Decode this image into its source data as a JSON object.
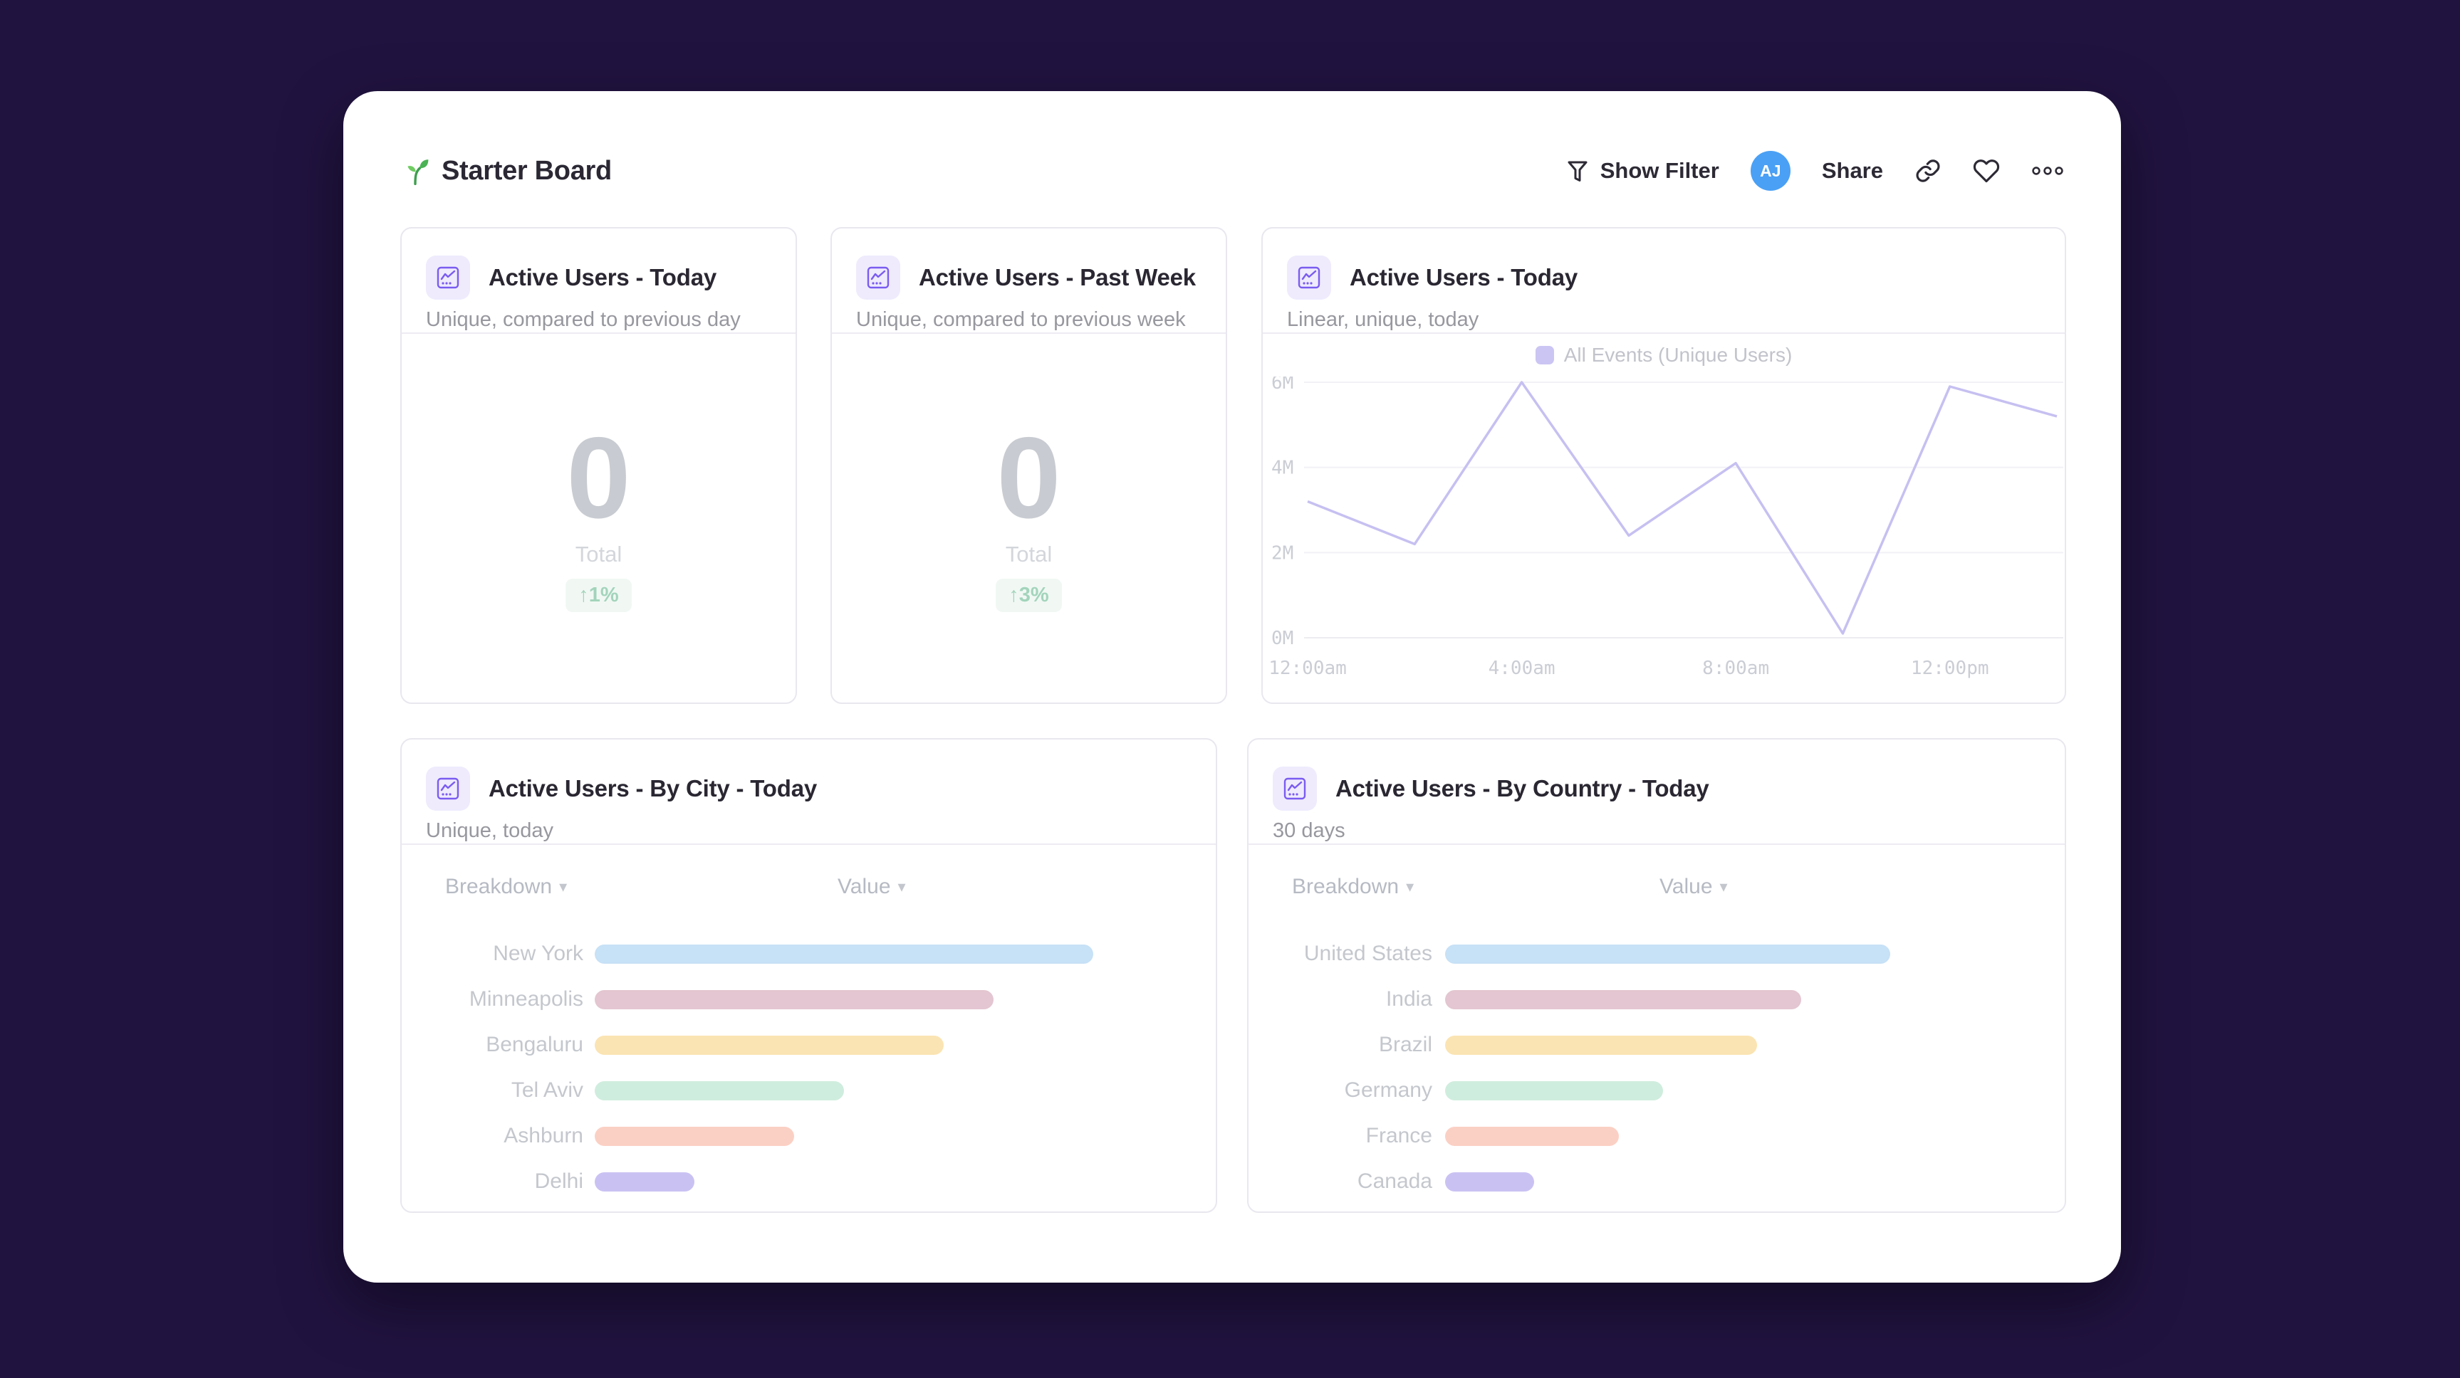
{
  "page": {
    "background": "#211340",
    "panel_background": "#ffffff"
  },
  "header": {
    "title": "Starter Board",
    "show_filter_label": "Show Filter",
    "avatar_initials": "AJ",
    "share_label": "Share"
  },
  "glyphs": {
    "caret": "▾"
  },
  "cards": {
    "today": {
      "title": "Active Users - Today",
      "subtitle": "Unique, compared to previous day",
      "value": "0",
      "value_label": "Total",
      "delta": "↑1%"
    },
    "past_week": {
      "title": "Active Users - Past Week",
      "subtitle": "Unique, compared to previous week",
      "value": "0",
      "value_label": "Total",
      "delta": "↑3%"
    },
    "today_chart": {
      "title": "Active Users - Today",
      "subtitle": "Linear, unique, today",
      "legend": "All Events (Unique Users)"
    },
    "by_city": {
      "title": "Active Users - By City - Today",
      "subtitle": "Unique, today",
      "col_breakdown": "Breakdown",
      "col_value": "Value"
    },
    "by_country": {
      "title": "Active Users - By Country - Today",
      "subtitle": "30 days",
      "col_breakdown": "Breakdown",
      "col_value": "Value"
    }
  },
  "chart_data": [
    {
      "type": "line",
      "title": "Active Users - Today",
      "x": [
        "12:00am",
        "2:00am",
        "4:00am",
        "6:00am",
        "8:00am",
        "10:00am",
        "12:00pm",
        "2:00pm"
      ],
      "x_tick_labels": [
        "12:00am",
        "4:00am",
        "8:00am",
        "12:00pm"
      ],
      "series": [
        {
          "name": "All Events (Unique Users)",
          "color": "#c6c0f1",
          "values_millions": [
            3.2,
            2.2,
            6.0,
            2.4,
            4.1,
            0.1,
            5.9,
            5.2
          ]
        }
      ],
      "ylim": [
        0,
        6
      ],
      "y_ticks": [
        "0M",
        "2M",
        "4M",
        "6M"
      ],
      "unit": "M",
      "grid": "horizontal",
      "legend_position": "top-center"
    },
    {
      "type": "bar",
      "orientation": "horizontal",
      "title": "Active Users - By City - Today",
      "categories": [
        "New York",
        "Minneapolis",
        "Bengaluru",
        "Tel Aviv",
        "Ashburn",
        "Delhi"
      ],
      "values_pct": [
        100,
        80,
        70,
        50,
        40,
        20
      ],
      "colors": [
        "#c7e1f6",
        "#e3c6d1",
        "#fbe4b3",
        "#cfedde",
        "#fbd0c4",
        "#cac1f3"
      ]
    },
    {
      "type": "bar",
      "orientation": "horizontal",
      "title": "Active Users - By Country - Today",
      "categories": [
        "United States",
        "India",
        "Brazil",
        "Germany",
        "France",
        "Canada"
      ],
      "values_pct": [
        100,
        80,
        70,
        49,
        39,
        20
      ],
      "colors": [
        "#c7e1f6",
        "#e3c6d1",
        "#fbe4b3",
        "#cfedde",
        "#fbd0c4",
        "#cac1f3"
      ]
    }
  ]
}
